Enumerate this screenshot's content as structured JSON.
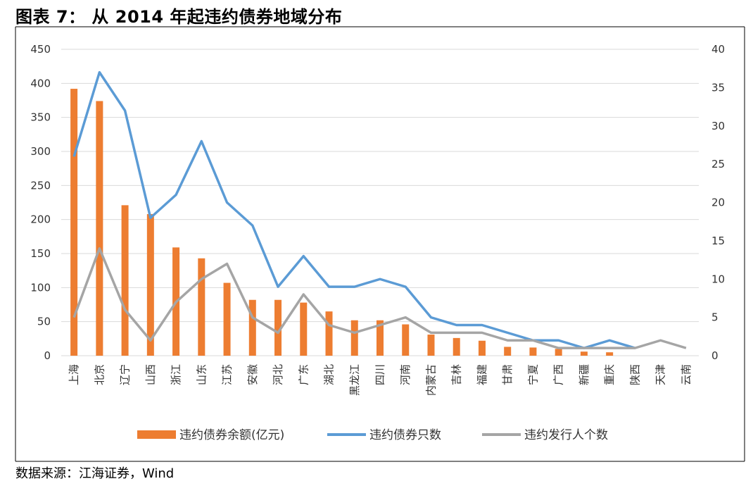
{
  "title": "图表 7：  从 2014 年起违约债券地域分布",
  "source": "数据来源：江海证券，Wind",
  "chart_data": {
    "type": "bar",
    "categories": [
      "上海",
      "北京",
      "辽宁",
      "山西",
      "浙江",
      "山东",
      "江苏",
      "安徽",
      "河北",
      "广东",
      "湖北",
      "黑龙江",
      "四川",
      "河南",
      "内蒙古",
      "吉林",
      "福建",
      "甘肃",
      "宁夏",
      "广西",
      "新疆",
      "重庆",
      "陕西",
      "天津",
      "云南"
    ],
    "series": [
      {
        "name": "违约债券余额(亿元)",
        "type": "bar",
        "axis": "left",
        "color": "#ED7D31",
        "values": [
          392,
          374,
          221,
          208,
          159,
          143,
          107,
          82,
          82,
          78,
          65,
          52,
          52,
          46,
          31,
          26,
          22,
          13,
          12,
          10,
          6,
          5,
          0,
          0,
          0
        ]
      },
      {
        "name": "违约债券只数",
        "type": "line",
        "axis": "right",
        "color": "#5B9BD5",
        "values": [
          26,
          37,
          32,
          18,
          21,
          28,
          20,
          17,
          9,
          13,
          9,
          9,
          10,
          9,
          5,
          4,
          4,
          3,
          2,
          2,
          1,
          2,
          1,
          null,
          null
        ]
      },
      {
        "name": "违约发行人个数",
        "type": "line",
        "axis": "right",
        "color": "#A5A5A5",
        "values": [
          5,
          14,
          6,
          2,
          7,
          10,
          12,
          5,
          3,
          8,
          4,
          3,
          4,
          5,
          3,
          3,
          3,
          2,
          2,
          1,
          1,
          1,
          1,
          2,
          1
        ]
      }
    ],
    "y_left": {
      "min": 0,
      "max": 450,
      "ticks": [
        "0",
        "50",
        "100",
        "150",
        "200",
        "250",
        "300",
        "350",
        "400",
        "450"
      ]
    },
    "y_right": {
      "min": 0,
      "max": 40,
      "ticks": [
        "0",
        "5",
        "10",
        "15",
        "20",
        "25",
        "30",
        "35",
        "40"
      ]
    },
    "grid": true,
    "legend_position": "bottom"
  }
}
